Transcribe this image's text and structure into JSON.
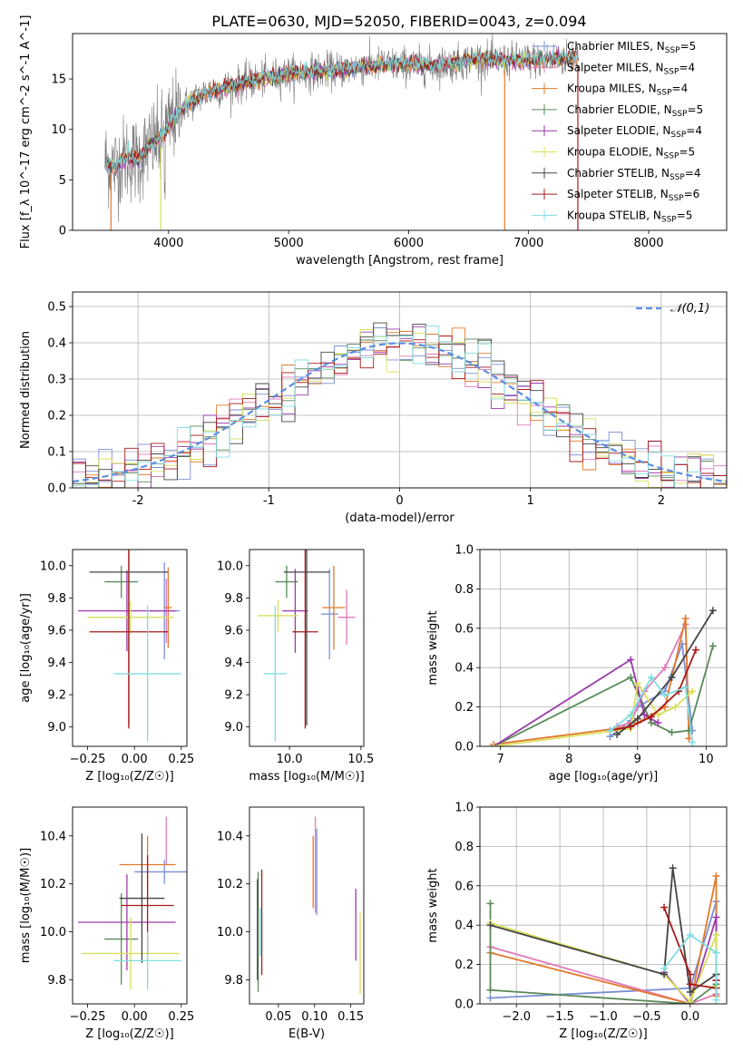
{
  "figure_title": "PLATE=0630, MJD=52050, FIBERID=0043, z=0.094",
  "colors": {
    "chabrier_miles": "#7b8fd6",
    "salpeter_miles": "#e07ab8",
    "kroupa_miles": "#e27a2a",
    "chabrier_elodie": "#5a8a5a",
    "salpeter_elodie": "#9a3aaa",
    "kroupa_elodie": "#d8e05a",
    "chabrier_stelib": "#444444",
    "salpeter_stelib": "#aa1a1a",
    "kroupa_stelib": "#7fdde0",
    "normal_curve": "#5b8fe0",
    "grid": "#b0b0b0",
    "spectrum_data": "#7a7a7a"
  },
  "chart_data": [
    {
      "id": "spectrum",
      "type": "line",
      "title": "",
      "xlabel": "wavelength [Angstrom, rest frame]",
      "ylabel": "Flux [f_λ 10^-17 erg cm^-2 s^-1 A^-1]",
      "xlim": [
        3200,
        8650
      ],
      "ylim": [
        0,
        19.5
      ],
      "xticks": [
        4000,
        5000,
        6000,
        7000,
        8000
      ],
      "yticks": [
        0,
        5,
        10,
        15
      ],
      "grid": false,
      "legend_position": "top-right",
      "legend": [
        {
          "label": "Chabrier MILES, N_SSP=5",
          "color_key": "chabrier_miles"
        },
        {
          "label": "Salpeter MILES, N_SSP=4",
          "color_key": "salpeter_miles"
        },
        {
          "label": "Kroupa MILES, N_SSP=4",
          "color_key": "kroupa_miles"
        },
        {
          "label": "Chabrier ELODIE, N_SSP=5",
          "color_key": "chabrier_elodie"
        },
        {
          "label": "Salpeter ELODIE, N_SSP=4",
          "color_key": "salpeter_elodie"
        },
        {
          "label": "Kroupa ELODIE, N_SSP=5",
          "color_key": "kroupa_elodie"
        },
        {
          "label": "Chabrier STELIB, N_SSP=4",
          "color_key": "chabrier_stelib"
        },
        {
          "label": "Salpeter STELIB, N_SSP=6",
          "color_key": "salpeter_stelib"
        },
        {
          "label": "Kroupa STELIB, N_SSP=5",
          "color_key": "kroupa_stelib"
        }
      ],
      "continuum": {
        "x": [
          3480,
          3550,
          3650,
          3750,
          3850,
          3950,
          4050,
          4150,
          4300,
          4500,
          4700,
          4860,
          5000,
          5200,
          5400,
          5600,
          5800,
          6000,
          6200,
          6400,
          6560,
          6700,
          6900,
          7100,
          7300,
          7400
        ],
        "y": [
          6.8,
          6.3,
          7.2,
          7.0,
          8.5,
          9.4,
          11.2,
          12.5,
          13.6,
          14.2,
          14.8,
          15.2,
          15.5,
          15.7,
          15.9,
          16.2,
          16.4,
          16.4,
          16.3,
          16.6,
          17.0,
          16.8,
          16.8,
          16.9,
          17.0,
          17.3
        ]
      }
    },
    {
      "id": "residuals",
      "type": "bar",
      "title": "",
      "xlabel": "(data-model)/error",
      "ylabel": "Normed distribution",
      "xlim": [
        -2.5,
        2.5
      ],
      "ylim": [
        0,
        0.54
      ],
      "xticks": [
        -2,
        -1,
        0,
        1,
        2
      ],
      "yticks": [
        0,
        0.1,
        0.2,
        0.3,
        0.4,
        0.5
      ],
      "grid": true,
      "legend_position": "top-right",
      "normal_label": "𝒩(0,1)",
      "bin_edges_start": -2.5,
      "bin_width": 0.1,
      "bin_count": 50
    },
    {
      "id": "age_vs_Z",
      "type": "scatter",
      "xlabel": "Z [log₁₀(Z/Z☉)]",
      "ylabel": "age  [log₁₀(age/yr)]",
      "xlim": [
        -0.33,
        0.28
      ],
      "ylim": [
        8.88,
        10.1
      ],
      "xticks": [
        -0.25,
        0.0,
        0.25
      ],
      "xtick_labels": [
        "−0.25",
        "0.00",
        "0.25"
      ],
      "yticks": [
        9.0,
        9.2,
        9.4,
        9.6,
        9.8,
        10.0
      ],
      "grid": false,
      "points": [
        {
          "color_key": "chabrier_miles",
          "x": 0.16,
          "y": 9.72,
          "xerr": 0.08,
          "yerr": 0.3
        },
        {
          "color_key": "salpeter_miles",
          "x": 0.17,
          "y": 9.72,
          "xerr": 0.02,
          "yerr": 0.2
        },
        {
          "color_key": "kroupa_miles",
          "x": 0.18,
          "y": 9.74,
          "xerr": 0.02,
          "yerr": 0.25
        },
        {
          "color_key": "chabrier_elodie",
          "x": -0.07,
          "y": 9.9,
          "xerr": 0.09,
          "yerr": 0.1
        },
        {
          "color_key": "salpeter_elodie",
          "x": -0.04,
          "y": 9.72,
          "xerr": 0.26,
          "yerr": 0.25
        },
        {
          "color_key": "kroupa_elodie",
          "x": -0.02,
          "y": 9.68,
          "xerr": 0.23,
          "yerr": 0.1
        },
        {
          "color_key": "chabrier_stelib",
          "x": -0.03,
          "y": 9.96,
          "xerr": 0.21,
          "yerr": 0.95
        },
        {
          "color_key": "salpeter_stelib",
          "x": -0.03,
          "y": 9.59,
          "xerr": 0.21,
          "yerr": 0.6
        },
        {
          "color_key": "kroupa_stelib",
          "x": 0.07,
          "y": 9.33,
          "xerr": 0.18,
          "yerr": 0.42
        }
      ]
    },
    {
      "id": "age_vs_mass",
      "type": "scatter",
      "xlabel": "mass [log₁₀(M/M☉)]",
      "ylabel": "",
      "xlim": [
        9.72,
        10.52
      ],
      "ylim": [
        8.88,
        10.1
      ],
      "xticks": [
        10.0,
        10.5
      ],
      "xtick_labels": [
        "10.0",
        "10.5"
      ],
      "yticks": [
        9.0,
        9.2,
        9.4,
        9.6,
        9.8,
        10.0
      ],
      "grid": false,
      "points": [
        {
          "color_key": "chabrier_miles",
          "x": 10.28,
          "y": 9.7,
          "xerr": 0.06,
          "yerr": 0.28
        },
        {
          "color_key": "salpeter_miles",
          "x": 10.4,
          "y": 9.68,
          "xerr": 0.06,
          "yerr": 0.17
        },
        {
          "color_key": "kroupa_miles",
          "x": 10.31,
          "y": 9.74,
          "xerr": 0.08,
          "yerr": 0.26
        },
        {
          "color_key": "chabrier_elodie",
          "x": 9.98,
          "y": 9.9,
          "xerr": 0.08,
          "yerr": 0.1
        },
        {
          "color_key": "salpeter_elodie",
          "x": 10.04,
          "y": 9.72,
          "xerr": 0.09,
          "yerr": 0.26
        },
        {
          "color_key": "kroupa_elodie",
          "x": 9.92,
          "y": 9.69,
          "xerr": 0.14,
          "yerr": 0.1
        },
        {
          "color_key": "chabrier_stelib",
          "x": 10.12,
          "y": 9.96,
          "xerr": 0.16,
          "yerr": 0.95
        },
        {
          "color_key": "salpeter_stelib",
          "x": 10.11,
          "y": 9.59,
          "xerr": 0.09,
          "yerr": 0.6
        },
        {
          "color_key": "kroupa_stelib",
          "x": 9.9,
          "y": 9.33,
          "xerr": 0.08,
          "yerr": 0.42
        }
      ]
    },
    {
      "id": "mass_weight_vs_age",
      "type": "line",
      "xlabel": "age  [log₁₀(age/yr)]",
      "ylabel": "mass weight",
      "xlim": [
        6.7,
        10.3
      ],
      "ylim": [
        0,
        1.0
      ],
      "xticks": [
        7,
        8,
        9,
        10
      ],
      "yticks": [
        0,
        0.2,
        0.4,
        0.6,
        0.8,
        1.0
      ],
      "grid": true,
      "series": [
        {
          "color_key": "chabrier_miles",
          "x": [
            8.6,
            8.9,
            9.0,
            9.4,
            9.65,
            9.8
          ],
          "y": [
            0.05,
            0.13,
            0.2,
            0.28,
            0.52,
            0.08
          ]
        },
        {
          "color_key": "salpeter_miles",
          "x": [
            8.7,
            8.9,
            9.1,
            9.4,
            9.7,
            9.75
          ],
          "y": [
            0.1,
            0.12,
            0.28,
            0.4,
            0.62,
            0.04
          ]
        },
        {
          "color_key": "kroupa_miles",
          "x": [
            6.9,
            8.9,
            9.0,
            9.4,
            9.7,
            9.75
          ],
          "y": [
            0.01,
            0.1,
            0.12,
            0.2,
            0.65,
            0.04
          ]
        },
        {
          "color_key": "chabrier_elodie",
          "x": [
            6.9,
            8.9,
            9.2,
            9.5,
            9.75,
            10.1
          ],
          "y": [
            0.0,
            0.35,
            0.12,
            0.07,
            0.08,
            0.51
          ]
        },
        {
          "color_key": "salpeter_elodie",
          "x": [
            6.9,
            8.9,
            9.0,
            9.1,
            9.3
          ],
          "y": [
            0.0,
            0.44,
            0.3,
            0.16,
            0.12
          ]
        },
        {
          "color_key": "kroupa_elodie",
          "x": [
            6.9,
            8.9,
            9.0,
            9.3,
            9.55,
            9.8
          ],
          "y": [
            0.0,
            0.09,
            0.32,
            0.16,
            0.2,
            0.28
          ]
        },
        {
          "color_key": "chabrier_stelib",
          "x": [
            8.7,
            9.0,
            9.5,
            10.1
          ],
          "y": [
            0.06,
            0.14,
            0.35,
            0.69
          ]
        },
        {
          "color_key": "salpeter_stelib",
          "x": [
            8.6,
            8.9,
            9.2,
            9.6,
            9.85
          ],
          "y": [
            0.08,
            0.1,
            0.15,
            0.28,
            0.49
          ]
        },
        {
          "color_key": "kroupa_stelib",
          "x": [
            8.6,
            8.9,
            9.2,
            9.4,
            9.7,
            9.8
          ],
          "y": [
            0.08,
            0.16,
            0.35,
            0.26,
            0.3,
            0.02
          ]
        }
      ]
    },
    {
      "id": "mass_vs_Z",
      "type": "scatter",
      "xlabel": "Z [log₁₀(Z/Z☉)]",
      "ylabel": "mass [log₁₀(M/M☉)]",
      "xlim": [
        -0.33,
        0.28
      ],
      "ylim": [
        9.7,
        10.52
      ],
      "xticks": [
        -0.25,
        0.0,
        0.25
      ],
      "xtick_labels": [
        "−0.25",
        "0.00",
        "0.25"
      ],
      "yticks": [
        9.8,
        10.0,
        10.2,
        10.4
      ],
      "grid": false,
      "points": [
        {
          "color_key": "chabrier_miles",
          "x": 0.16,
          "y": 10.25,
          "xerr": 0.16,
          "yerr": 0.05
        },
        {
          "color_key": "salpeter_miles",
          "x": 0.17,
          "y": 10.38,
          "xerr": 0.0,
          "yerr": 0.1
        },
        {
          "color_key": "kroupa_miles",
          "x": 0.07,
          "y": 10.28,
          "xerr": 0.15,
          "yerr": 0.12
        },
        {
          "color_key": "chabrier_elodie",
          "x": -0.07,
          "y": 9.97,
          "xerr": 0.09,
          "yerr": 0.19
        },
        {
          "color_key": "salpeter_elodie",
          "x": -0.04,
          "y": 10.04,
          "xerr": 0.26,
          "yerr": 0.2
        },
        {
          "color_key": "kroupa_elodie",
          "x": -0.02,
          "y": 9.91,
          "xerr": 0.26,
          "yerr": 0.15
        },
        {
          "color_key": "chabrier_stelib",
          "x": 0.04,
          "y": 10.14,
          "xerr": 0.12,
          "yerr": 0.27
        },
        {
          "color_key": "salpeter_stelib",
          "x": 0.07,
          "y": 10.11,
          "xerr": 0.14,
          "yerr": 0.21
        },
        {
          "color_key": "kroupa_stelib",
          "x": 0.07,
          "y": 9.88,
          "xerr": 0.18,
          "yerr": 0.12
        }
      ]
    },
    {
      "id": "mass_vs_ebv",
      "type": "scatter",
      "xlabel": "E(B-V)",
      "ylabel": "",
      "xlim": [
        0.01,
        0.168
      ],
      "ylim": [
        9.7,
        10.52
      ],
      "xticks": [
        0.05,
        0.1,
        0.15
      ],
      "xtick_labels": [
        "0.05",
        "0.10",
        "0.15"
      ],
      "yticks": [
        9.8,
        10.0,
        10.2,
        10.4
      ],
      "grid": false,
      "points": [
        {
          "color_key": "chabrier_miles",
          "x": 0.103,
          "y": 10.25,
          "xerr": 0,
          "yerr": 0.18
        },
        {
          "color_key": "salpeter_miles",
          "x": 0.101,
          "y": 10.28,
          "xerr": 0,
          "yerr": 0.2
        },
        {
          "color_key": "kroupa_miles",
          "x": 0.098,
          "y": 10.25,
          "xerr": 0,
          "yerr": 0.15
        },
        {
          "color_key": "chabrier_elodie",
          "x": 0.022,
          "y": 10.0,
          "xerr": 0,
          "yerr": 0.25
        },
        {
          "color_key": "salpeter_elodie",
          "x": 0.157,
          "y": 10.03,
          "xerr": 0,
          "yerr": 0.15
        },
        {
          "color_key": "kroupa_elodie",
          "x": 0.163,
          "y": 9.91,
          "xerr": 0,
          "yerr": 0.17
        },
        {
          "color_key": "chabrier_stelib",
          "x": 0.021,
          "y": 10.01,
          "xerr": 0,
          "yerr": 0.21
        },
        {
          "color_key": "salpeter_stelib",
          "x": 0.027,
          "y": 10.04,
          "xerr": 0,
          "yerr": 0.22
        },
        {
          "color_key": "kroupa_stelib",
          "x": 0.025,
          "y": 10.0,
          "xerr": 0,
          "yerr": 0.1
        }
      ]
    },
    {
      "id": "mass_weight_vs_Z",
      "type": "line",
      "xlabel": "Z [log₁₀(Z/Z☉)]",
      "ylabel": "mass weight",
      "xlim": [
        -2.42,
        0.42
      ],
      "ylim": [
        0,
        1.0
      ],
      "xticks": [
        -2.0,
        -1.5,
        -1.0,
        -0.5,
        0.0
      ],
      "xtick_labels": [
        "−2.0",
        "−1.5",
        "−1.0",
        "−0.5",
        "0.0"
      ],
      "yticks": [
        0,
        0.2,
        0.4,
        0.6,
        0.8,
        1.0
      ],
      "grid": true,
      "series": [
        {
          "color_key": "chabrier_miles",
          "x": [
            -2.3,
            0.0,
            0.3,
            0.3
          ],
          "y": [
            0.03,
            0.08,
            0.52,
            0.1
          ]
        },
        {
          "color_key": "salpeter_miles",
          "x": [
            -2.3,
            0.0,
            0.3
          ],
          "y": [
            0.29,
            0.0,
            0.05
          ]
        },
        {
          "color_key": "kroupa_miles",
          "x": [
            -2.3,
            0.0,
            0.3,
            0.3
          ],
          "y": [
            0.26,
            0.0,
            0.65,
            0.04
          ]
        },
        {
          "color_key": "chabrier_elodie",
          "x": [
            -2.3,
            -2.3,
            0.0,
            0.3,
            0.3
          ],
          "y": [
            0.51,
            0.07,
            0.0,
            0.1,
            0.15
          ]
        },
        {
          "color_key": "salpeter_elodie",
          "x": [
            -0.3,
            0.0,
            0.3,
            0.3
          ],
          "y": [
            0.16,
            0.0,
            0.44,
            0.12
          ]
        },
        {
          "color_key": "kroupa_elodie",
          "x": [
            -2.3,
            -0.3,
            0.0,
            0.3,
            0.3
          ],
          "y": [
            0.41,
            0.15,
            0.01,
            0.35,
            0.09
          ]
        },
        {
          "color_key": "chabrier_stelib",
          "x": [
            -2.3,
            -0.3,
            -0.2,
            0.0,
            0.3
          ],
          "y": [
            0.4,
            0.15,
            0.69,
            0.06,
            0.15
          ]
        },
        {
          "color_key": "salpeter_stelib",
          "x": [
            -0.3,
            0.0,
            0.0,
            0.3,
            0.3
          ],
          "y": [
            0.49,
            0.15,
            0.1,
            0.08,
            0.12
          ]
        },
        {
          "color_key": "kroupa_stelib",
          "x": [
            -0.3,
            0.0,
            0.3,
            0.3
          ],
          "y": [
            0.18,
            0.35,
            0.26,
            0.02
          ]
        }
      ]
    }
  ]
}
